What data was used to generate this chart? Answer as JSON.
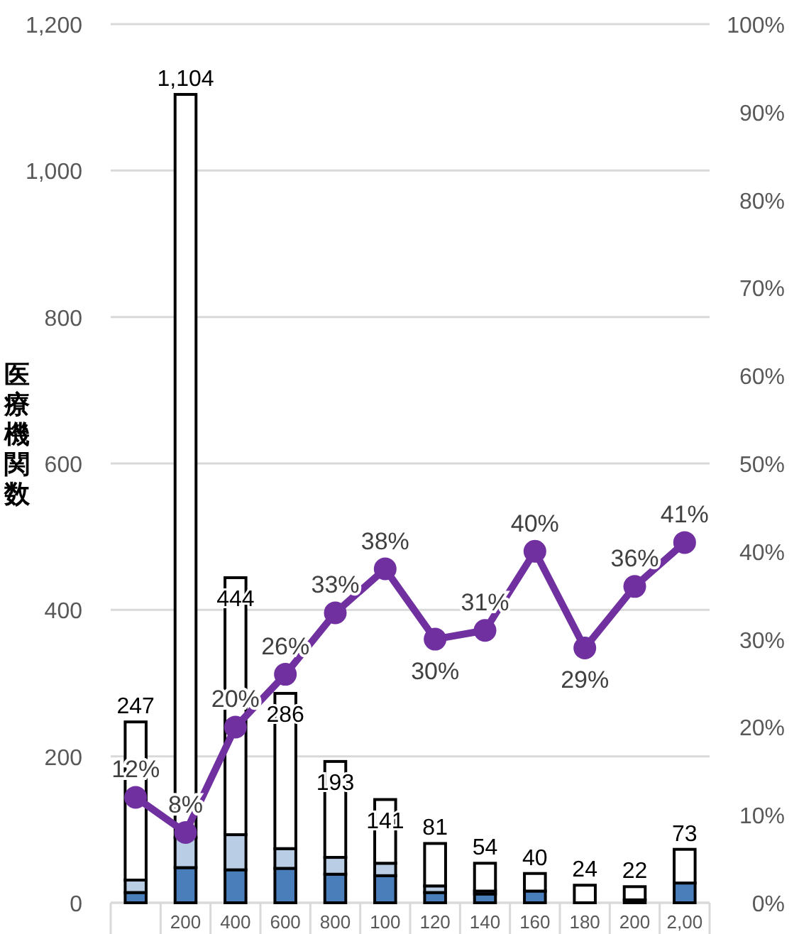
{
  "chart_data": {
    "type": "bar",
    "ylabel": "医療機関数",
    "categories": [
      null,
      "200",
      "400",
      "600",
      "800",
      "100",
      "120",
      "140",
      "160",
      "180",
      "200",
      "2,00"
    ],
    "stacked": true,
    "series": [
      {
        "color": "#4a7ebb",
        "values": [
          14,
          48,
          45,
          47,
          39,
          37,
          14,
          12,
          16,
          null,
          4,
          27
        ]
      },
      {
        "color": "#b9cde5",
        "values": [
          17,
          41,
          48,
          27,
          23,
          17,
          9,
          4,
          0,
          0,
          0,
          null
        ]
      },
      {
        "color": "#ffffff",
        "values": [
          216,
          1015,
          351,
          212,
          131,
          87,
          58,
          38,
          24,
          24,
          18,
          46
        ]
      },
      {
        "type": "line",
        "axis": "y2",
        "color": "#7030a0",
        "values": [
          12,
          8,
          20,
          26,
          33,
          38,
          30,
          31,
          40,
          29,
          36,
          41
        ],
        "value_labels": [
          "12%",
          "8%",
          "20%",
          "26%",
          "33%",
          "38%",
          "30%",
          "31%",
          "40%",
          "29%",
          "36%",
          "41%"
        ]
      }
    ],
    "totals": [
      "247",
      "1,104",
      "444",
      "286",
      "193",
      "141",
      "81",
      "54",
      "40",
      "24",
      "22",
      "73"
    ],
    "marker": "circle",
    "ylim": [
      0,
      1200
    ],
    "yticks": [
      0,
      200,
      400,
      600,
      800,
      {
        "value": 1000,
        "label": "1,000"
      },
      {
        "value": 1200,
        "label": "1,200"
      }
    ],
    "y2lim": [
      0,
      100
    ],
    "y2ticks": [
      {
        "value": 0,
        "label": "0%"
      },
      {
        "value": 10,
        "label": "10%"
      },
      {
        "value": 20,
        "label": "20%"
      },
      {
        "value": 30,
        "label": "30%"
      },
      {
        "value": 40,
        "label": "40%"
      },
      {
        "value": 50,
        "label": "50%"
      },
      {
        "value": 60,
        "label": "60%"
      },
      {
        "value": 70,
        "label": "70%"
      },
      {
        "value": 80,
        "label": "80%"
      },
      {
        "value": 90,
        "label": "90%"
      },
      {
        "value": 100,
        "label": "100%"
      }
    ],
    "grid": "y"
  }
}
